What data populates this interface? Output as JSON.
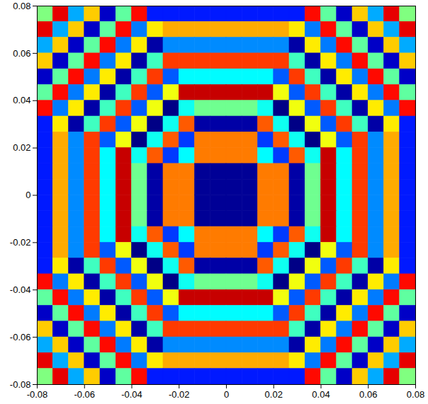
{
  "chart_data": {
    "type": "heatmap",
    "xlim": [
      -0.08,
      0.08
    ],
    "ylim": [
      -0.08,
      0.08
    ],
    "xticks": [
      -0.08,
      -0.06,
      -0.04,
      -0.02,
      0,
      0.02,
      0.04,
      0.06,
      0.08
    ],
    "yticks": [
      -0.08,
      -0.06,
      -0.04,
      -0.02,
      0,
      0.02,
      0.04,
      0.06,
      0.08
    ],
    "zlim": [
      -3.14,
      3.14
    ],
    "z": [
      [
        0,
        2.5,
        -1.3,
        1.1,
        -2.7,
        -0.2,
        2.3,
        -2.2,
        -2.2,
        -2.2,
        -2.2,
        -2.2,
        -2.2,
        -2.2,
        -2.2,
        -2.2,
        -2.2,
        2.3,
        -0.2,
        -2.7,
        1.1,
        -1.3,
        2.5,
        0
      ],
      [
        2.5,
        -1.3,
        1.1,
        -2.7,
        -0.2,
        2.3,
        -1.6,
        0.9,
        1.3,
        1.3,
        1.3,
        1.3,
        1.3,
        1.3,
        1.3,
        1.3,
        0.9,
        -1.6,
        2.3,
        -0.2,
        -2.7,
        1.1,
        -1.3,
        2.5
      ],
      [
        -1.3,
        1.1,
        -2.7,
        -0.2,
        2.3,
        -1.6,
        0.9,
        -2.9,
        -1.5,
        -1.5,
        -1.5,
        -1.5,
        -1.5,
        -1.5,
        -1.5,
        -1.5,
        -2.9,
        0.9,
        -1.6,
        2.3,
        -0.2,
        -2.7,
        1.1,
        -1.3
      ],
      [
        1.1,
        -2.7,
        -0.2,
        2.3,
        -1.6,
        0.9,
        -2.9,
        -0.4,
        2,
        2,
        2,
        2,
        2,
        2,
        2,
        2,
        -0.4,
        -2.9,
        0.9,
        -1.6,
        2.3,
        -0.2,
        -2.7,
        1.1
      ],
      [
        -2.7,
        -0.2,
        2.3,
        -1.6,
        0.9,
        -2.9,
        -0.4,
        2,
        -1.8,
        -0.8,
        -0.8,
        -0.8,
        -0.8,
        -0.8,
        -0.8,
        -1.8,
        2,
        -0.4,
        -2.9,
        0.9,
        -1.6,
        2.3,
        -0.2,
        -2.7
      ],
      [
        -0.2,
        2.3,
        -1.6,
        0.9,
        -2.9,
        -0.4,
        2,
        -1.8,
        0.7,
        2.7,
        2.7,
        2.7,
        2.7,
        2.7,
        2.7,
        0.7,
        -1.8,
        2,
        -0.4,
        -2.9,
        0.9,
        -1.6,
        2.3,
        -0.2
      ],
      [
        2.3,
        -1.6,
        0.9,
        -2.9,
        -0.4,
        2,
        -1.8,
        0.7,
        -3.1,
        -0.7,
        -0.1,
        -0.1,
        -0.1,
        -0.1,
        -0.7,
        -3.1,
        0.7,
        -1.8,
        2,
        -0.4,
        -2.9,
        0.9,
        -1.6,
        2.3
      ],
      [
        -2.2,
        0.9,
        -2.9,
        -0.4,
        2,
        -1.8,
        0.7,
        -3.1,
        -0.7,
        1.8,
        -2.9,
        -2.9,
        -2.9,
        -2.9,
        1.8,
        -0.7,
        -3.1,
        0.7,
        -1.8,
        2,
        -0.4,
        -2.9,
        0.9,
        -2.2
      ],
      [
        -2.2,
        1.3,
        -1.5,
        2,
        -1.8,
        0.7,
        -3.1,
        -0.7,
        1.8,
        -2,
        1.6,
        1.6,
        1.6,
        1.6,
        -2,
        1.8,
        -0.7,
        -3.1,
        0.7,
        -1.8,
        2,
        -1.5,
        1.3,
        -2.2
      ],
      [
        -2.2,
        1.3,
        -1.5,
        2,
        -0.8,
        2.7,
        -0.7,
        1.8,
        -2,
        -0.8,
        1.6,
        1.6,
        1.6,
        1.6,
        -0.8,
        -2,
        1.8,
        -0.7,
        2.7,
        -0.8,
        2,
        -1.5,
        1.3,
        -2.2
      ],
      [
        -2.2,
        1.3,
        -1.5,
        2,
        -0.8,
        2.7,
        -0.1,
        -2.9,
        1.6,
        1.6,
        -3,
        -3,
        -3,
        -3,
        1.6,
        1.6,
        -2.9,
        -0.1,
        2.7,
        -0.8,
        2,
        -1.5,
        1.3,
        -2.2
      ],
      [
        -2.2,
        1.3,
        -1.5,
        2,
        -0.8,
        2.7,
        -0.1,
        -2.9,
        1.6,
        1.6,
        -3,
        -3,
        -3,
        -3,
        1.6,
        1.6,
        -2.9,
        -0.1,
        2.7,
        -0.8,
        2,
        -1.5,
        1.3,
        -2.2
      ],
      [
        -2.2,
        1.3,
        -1.5,
        2,
        -0.8,
        2.7,
        -0.1,
        -2.9,
        1.6,
        1.6,
        -3,
        -3,
        -3,
        -3,
        1.6,
        1.6,
        -2.9,
        -0.1,
        2.7,
        -0.8,
        2,
        -1.5,
        1.3,
        -2.2
      ],
      [
        -2.2,
        1.3,
        -1.5,
        2,
        -0.8,
        2.7,
        -0.1,
        -2.9,
        1.6,
        1.6,
        -3,
        -3,
        -3,
        -3,
        1.6,
        1.6,
        -2.9,
        -0.1,
        2.7,
        -0.8,
        2,
        -1.5,
        1.3,
        -2.2
      ],
      [
        -2.2,
        1.3,
        -1.5,
        2,
        -0.8,
        2.7,
        -0.7,
        1.8,
        -2,
        -0.8,
        1.6,
        1.6,
        1.6,
        1.6,
        -0.8,
        -2,
        1.8,
        -0.7,
        2.7,
        -0.8,
        2,
        -1.5,
        1.3,
        -2.2
      ],
      [
        -2.2,
        1.3,
        -1.5,
        2,
        -1.8,
        0.7,
        -3.1,
        -0.7,
        1.8,
        -2,
        1.6,
        1.6,
        1.6,
        1.6,
        -2,
        1.8,
        -0.7,
        -3.1,
        0.7,
        -1.8,
        2,
        -1.5,
        1.3,
        -2.2
      ],
      [
        -2.2,
        0.9,
        -2.9,
        -0.4,
        2,
        -1.8,
        0.7,
        -3.1,
        -0.7,
        1.8,
        -2.9,
        -2.9,
        -2.9,
        -2.9,
        1.8,
        -0.7,
        -3.1,
        0.7,
        -1.8,
        2,
        -0.4,
        -2.9,
        0.9,
        -2.2
      ],
      [
        2.3,
        -1.6,
        0.9,
        -2.9,
        -0.4,
        2,
        -1.8,
        0.7,
        -3.1,
        -0.7,
        -0.1,
        -0.1,
        -0.1,
        -0.1,
        -0.7,
        -3.1,
        0.7,
        -1.8,
        2,
        -0.4,
        -2.9,
        0.9,
        -1.6,
        2.3
      ],
      [
        -0.2,
        2.3,
        -1.6,
        0.9,
        -2.9,
        -0.4,
        2,
        -1.8,
        0.7,
        2.7,
        2.7,
        2.7,
        2.7,
        2.7,
        2.7,
        0.7,
        -1.8,
        2,
        -0.4,
        -2.9,
        0.9,
        -1.6,
        2.3,
        -0.2
      ],
      [
        -2.7,
        -0.2,
        2.3,
        -1.6,
        0.9,
        -2.9,
        -0.4,
        2,
        -1.8,
        -0.8,
        -0.8,
        -0.8,
        -0.8,
        -0.8,
        -0.8,
        -1.8,
        2,
        -0.4,
        -2.9,
        0.9,
        -1.6,
        2.3,
        -0.2,
        -2.7
      ],
      [
        1.1,
        -2.7,
        -0.2,
        2.3,
        -1.6,
        0.9,
        -2.9,
        -0.4,
        2,
        2,
        2,
        2,
        2,
        2,
        2,
        2,
        -0.4,
        -2.9,
        0.9,
        -1.6,
        2.3,
        -0.2,
        -2.7,
        1.1
      ],
      [
        -1.3,
        1.1,
        -2.7,
        -0.2,
        2.3,
        -1.6,
        0.9,
        -2.9,
        -1.5,
        -1.5,
        -1.5,
        -1.5,
        -1.5,
        -1.5,
        -1.5,
        -1.5,
        -2.9,
        0.9,
        -1.6,
        2.3,
        -0.2,
        -2.7,
        1.1,
        -1.3
      ],
      [
        2.5,
        -1.3,
        1.1,
        -2.7,
        -0.2,
        2.3,
        -1.6,
        0.9,
        1.3,
        1.3,
        1.3,
        1.3,
        1.3,
        1.3,
        1.3,
        1.3,
        0.9,
        -1.6,
        2.3,
        -0.2,
        -2.7,
        1.1,
        -1.3,
        2.5
      ],
      [
        0,
        2.5,
        -1.3,
        1.1,
        -2.7,
        -0.2,
        2.3,
        -2.2,
        -2.2,
        -2.2,
        -2.2,
        -2.2,
        -2.2,
        -2.2,
        -2.2,
        -2.2,
        -2.2,
        2.3,
        -0.2,
        -2.7,
        1.1,
        -1.3,
        2.5,
        0
      ]
    ]
  }
}
